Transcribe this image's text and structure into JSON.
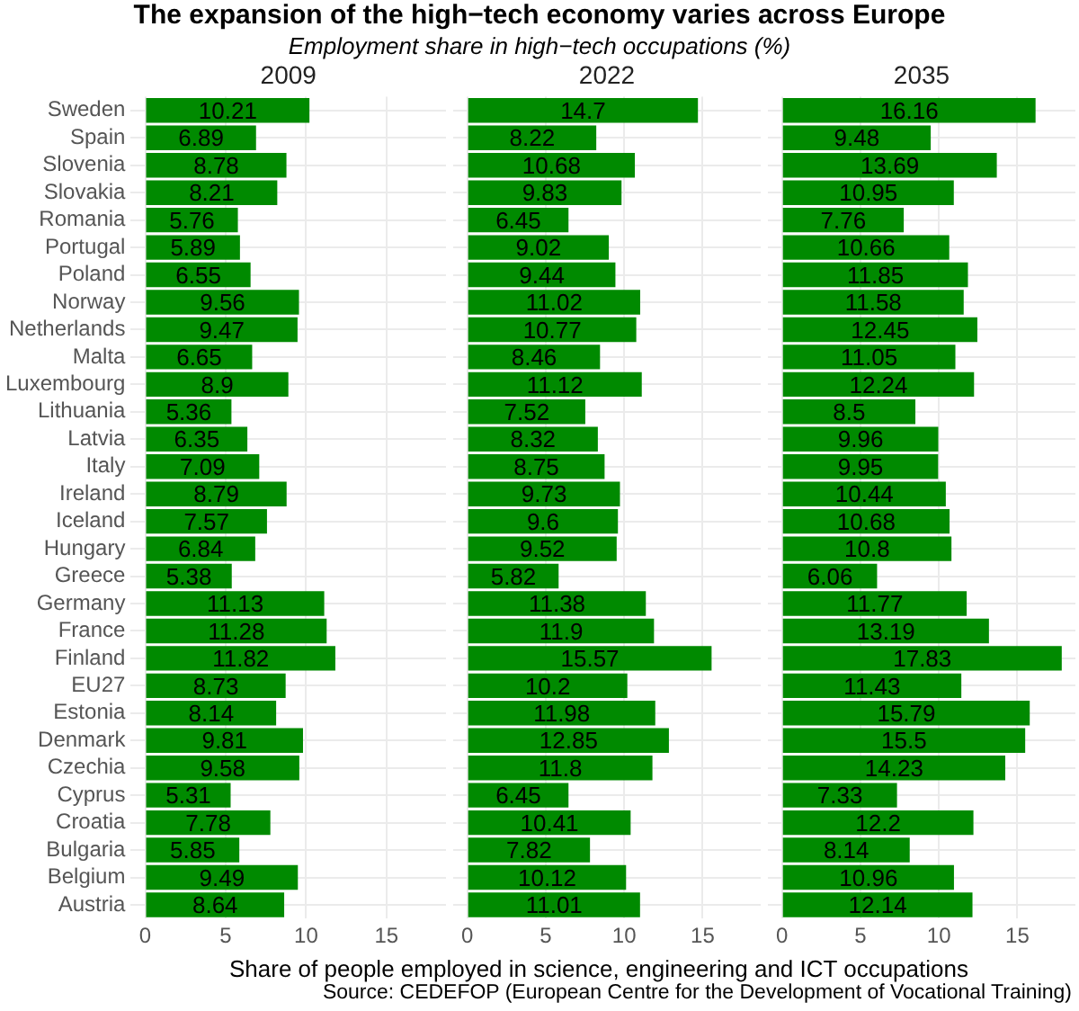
{
  "chart_data": [
    {
      "type": "other",
      "title": "The expansion of the high−tech economy varies across Europe",
      "subtitle": "Employment share in high−tech occupations (%)"
    },
    {
      "type": "bar",
      "orientation": "horizontal",
      "title": "2009",
      "categories": [
        "Sweden",
        "Spain",
        "Slovenia",
        "Slovakia",
        "Romania",
        "Portugal",
        "Poland",
        "Norway",
        "Netherlands",
        "Malta",
        "Luxembourg",
        "Lithuania",
        "Latvia",
        "Italy",
        "Ireland",
        "Iceland",
        "Hungary",
        "Greece",
        "Germany",
        "France",
        "Finland",
        "EU27",
        "Estonia",
        "Denmark",
        "Czechia",
        "Cyprus",
        "Croatia",
        "Bulgaria",
        "Belgium",
        "Austria"
      ],
      "values": [
        10.21,
        6.89,
        8.78,
        8.21,
        5.76,
        5.89,
        6.55,
        9.56,
        9.47,
        6.65,
        8.9,
        5.36,
        6.35,
        7.09,
        8.79,
        7.57,
        6.84,
        5.38,
        11.13,
        11.28,
        11.82,
        8.73,
        8.14,
        9.81,
        9.58,
        5.31,
        7.78,
        5.85,
        9.49,
        8.64
      ],
      "color": "#008a00",
      "xlim": [
        -0.9,
        18.7
      ],
      "xticks": [
        0,
        5,
        10,
        15
      ],
      "grid": true,
      "data_labels": true
    },
    {
      "type": "bar",
      "orientation": "horizontal",
      "title": "2022",
      "xlabel": "Share of people employed in science, engineering and ICT occupations",
      "annotations": [
        "Source: CEDEFOP (European Centre for the Development of Vocational Training)"
      ],
      "categories": [
        null,
        null,
        null,
        null,
        null,
        null,
        null,
        null,
        null,
        null,
        null,
        null,
        null,
        null,
        null,
        null,
        null,
        null,
        null,
        null,
        null,
        null,
        null,
        null,
        null,
        null,
        null,
        null,
        null,
        null
      ],
      "values": [
        14.7,
        8.22,
        10.68,
        9.83,
        6.45,
        9.02,
        9.44,
        11.02,
        10.77,
        8.46,
        11.12,
        7.52,
        8.32,
        8.75,
        9.73,
        9.6,
        9.52,
        5.82,
        11.38,
        11.9,
        15.57,
        10.2,
        11.98,
        12.85,
        11.8,
        6.45,
        10.41,
        7.82,
        10.12,
        11.01
      ],
      "color": "#008a00",
      "xlim": [
        -0.9,
        18.7
      ],
      "xticks": [
        0,
        5,
        10,
        15
      ],
      "grid": true,
      "data_labels": true,
      "tick_labels": "x"
    },
    {
      "type": "bar",
      "orientation": "horizontal",
      "title": "2035",
      "categories": [
        null,
        null,
        null,
        null,
        null,
        null,
        null,
        null,
        null,
        null,
        null,
        null,
        null,
        null,
        null,
        null,
        null,
        null,
        null,
        null,
        null,
        null,
        null,
        null,
        null,
        null,
        null,
        null,
        null,
        null
      ],
      "values": [
        16.16,
        9.48,
        13.69,
        10.95,
        7.76,
        10.66,
        11.85,
        11.58,
        12.45,
        11.05,
        12.24,
        8.5,
        9.96,
        9.95,
        10.44,
        10.68,
        10.8,
        6.06,
        11.77,
        13.19,
        17.83,
        11.43,
        15.79,
        15.5,
        14.23,
        7.33,
        12.2,
        8.14,
        10.96,
        12.14
      ],
      "color": "#008a00",
      "xlim": [
        -0.9,
        18.7
      ],
      "xticks": [
        0,
        5,
        10,
        15
      ],
      "grid": true,
      "data_labels": true,
      "tick_labels": "x"
    }
  ]
}
